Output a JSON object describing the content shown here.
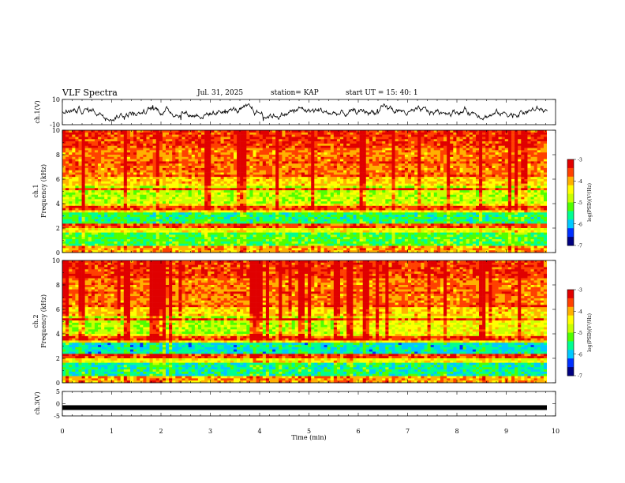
{
  "header": {
    "title": "VLF Spectra",
    "date": "Jul. 31, 2025",
    "station": "station= KAP",
    "start": "start  UT =   15: 40: 1"
  },
  "chart_data": [
    {
      "type": "line",
      "name": "ch1-waveform",
      "ylabel": "ch.1(V)",
      "ylim": [
        -10,
        10
      ],
      "yticks": [
        "10",
        "-10"
      ],
      "xlim": [
        0,
        10
      ]
    },
    {
      "type": "heatmap",
      "name": "ch1-spectrogram",
      "ylabel": "ch.1\nFrequency (kHz)",
      "ylabel_line1": "ch.1",
      "ylabel_line2": "Frequency (kHz)",
      "ylim": [
        0,
        10
      ],
      "yticks": [
        "0",
        "2",
        "4",
        "6",
        "8",
        "10"
      ],
      "xlim": [
        0,
        9.85
      ],
      "colorbar": {
        "label": "log(PSD)(V²/Hz)",
        "range": [
          -7,
          -3
        ],
        "ticks": [
          "-3",
          "-4",
          "-5",
          "-6",
          "-7"
        ]
      }
    },
    {
      "type": "heatmap",
      "name": "ch2-spectrogram",
      "ylabel_line1": "ch.2",
      "ylabel_line2": "Frequency (kHz)",
      "ylim": [
        0,
        10
      ],
      "yticks": [
        "0",
        "2",
        "4",
        "6",
        "8",
        "10"
      ],
      "xlim": [
        0,
        9.85
      ],
      "colorbar": {
        "label": "log(PSD)(V²/Hz)",
        "range": [
          -7,
          -3
        ],
        "ticks": [
          "-3",
          "-4",
          "-5",
          "-6",
          "-7"
        ]
      }
    },
    {
      "type": "line",
      "name": "ch3-waveform",
      "ylabel": "ch.3(V)",
      "ylim": [
        -5,
        5
      ],
      "yticks": [
        "5",
        "0",
        "-5"
      ],
      "xlim": [
        0,
        10
      ],
      "level": -1.6
    }
  ],
  "xaxis": {
    "label": "Time (min)",
    "ticks": [
      "0",
      "1",
      "2",
      "3",
      "4",
      "5",
      "6",
      "7",
      "8",
      "9",
      "10"
    ]
  },
  "colors": {
    "palette": [
      "#000080",
      "#0030ff",
      "#00c8ff",
      "#00ff90",
      "#50ff00",
      "#c8ff00",
      "#ffff00",
      "#ffb000",
      "#ff4000",
      "#e00000"
    ]
  }
}
